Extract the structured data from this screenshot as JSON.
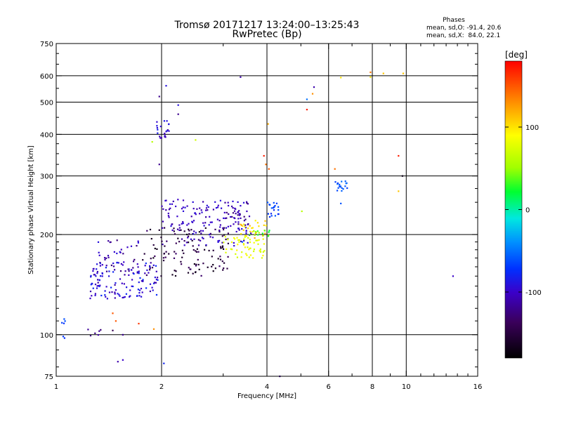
{
  "chart_data": {
    "type": "scatter",
    "title": "Tromsø 20171217 13:24:00–13:25:43",
    "subtitle": "RwPretec (Bp)",
    "xlabel": "Frequency [MHz]",
    "ylabel": "Stationary phase Virtual Height [km]",
    "x_scale": "log2",
    "y_scale": "log",
    "xlim": [
      1,
      16
    ],
    "ylim": [
      75,
      750
    ],
    "x_ticks": [
      1,
      2,
      4,
      6,
      8,
      10,
      16
    ],
    "x_gridlines": [
      2,
      4,
      6,
      8,
      10
    ],
    "y_ticks": [
      75,
      100,
      200,
      300,
      400,
      500,
      600,
      750
    ],
    "y_gridlines": [
      100,
      200,
      300,
      400,
      500,
      600
    ],
    "grid": true,
    "stats": {
      "heading": "Phases",
      "line_o": "mean, sd,O: -91.4, 20.6",
      "line_x": "mean, sd,X:  84.0, 22.1"
    },
    "colorbar": {
      "label": "[deg]",
      "range": [
        -180,
        180
      ],
      "ticks": [
        {
          "value": 100,
          "label": "100"
        },
        {
          "value": 0,
          "label": "0"
        },
        {
          "value": -100,
          "label": "-100"
        }
      ]
    },
    "clusters": [
      {
        "f_range": [
          1.02,
          1.06
        ],
        "h_range": [
          96,
          113
        ],
        "phase_range": [
          -80,
          -60
        ],
        "count": 6
      },
      {
        "f_range": [
          1.23,
          1.35
        ],
        "h_range": [
          99,
          104
        ],
        "phase_range": [
          -130,
          -110
        ],
        "count": 6
      },
      {
        "f_range": [
          1.25,
          1.95
        ],
        "h_range": [
          128,
          165
        ],
        "phase_range": [
          -115,
          -75
        ],
        "count": 130
      },
      {
        "f_range": [
          1.3,
          1.75
        ],
        "h_range": [
          150,
          195
        ],
        "phase_range": [
          -130,
          -90
        ],
        "count": 40
      },
      {
        "f_range": [
          1.75,
          3.1
        ],
        "h_range": [
          150,
          210
        ],
        "phase_range": [
          -170,
          -130
        ],
        "count": 120
      },
      {
        "f_range": [
          2.0,
          3.6
        ],
        "h_range": [
          185,
          255
        ],
        "phase_range": [
          -115,
          -90
        ],
        "count": 140
      },
      {
        "f_range": [
          3.0,
          3.55
        ],
        "h_range": [
          205,
          250
        ],
        "phase_range": [
          -130,
          -95
        ],
        "count": 30
      },
      {
        "f_range": [
          3.0,
          3.95
        ],
        "h_range": [
          170,
          198
        ],
        "phase_range": [
          70,
          95
        ],
        "count": 55
      },
      {
        "f_range": [
          3.35,
          4.0
        ],
        "h_range": [
          192,
          222
        ],
        "phase_range": [
          90,
          125
        ],
        "count": 25
      },
      {
        "f_range": [
          3.55,
          4.1
        ],
        "h_range": [
          196,
          206
        ],
        "phase_range": [
          20,
          60
        ],
        "count": 15
      },
      {
        "f_range": [
          4.0,
          4.4
        ],
        "h_range": [
          225,
          250
        ],
        "phase_range": [
          -80,
          -55
        ],
        "count": 20
      },
      {
        "f_range": [
          1.93,
          2.1
        ],
        "h_range": [
          390,
          440
        ],
        "phase_range": [
          -110,
          -80
        ],
        "count": 22
      },
      {
        "f_range": [
          6.25,
          6.8
        ],
        "h_range": [
          270,
          290
        ],
        "phase_range": [
          -70,
          -45
        ],
        "count": 18
      }
    ],
    "points": [
      {
        "f": 1.5,
        "h": 83,
        "phase": -110
      },
      {
        "f": 1.55,
        "h": 84,
        "phase": -100
      },
      {
        "f": 1.55,
        "h": 100,
        "phase": -120
      },
      {
        "f": 1.45,
        "h": 103,
        "phase": -140
      },
      {
        "f": 1.48,
        "h": 110,
        "phase": 150
      },
      {
        "f": 1.45,
        "h": 116,
        "phase": 150
      },
      {
        "f": 1.72,
        "h": 108,
        "phase": 160
      },
      {
        "f": 1.9,
        "h": 104,
        "phase": 130
      },
      {
        "f": 2.03,
        "h": 82,
        "phase": -80
      },
      {
        "f": 1.97,
        "h": 325,
        "phase": -120
      },
      {
        "f": 1.97,
        "h": 520,
        "phase": -120
      },
      {
        "f": 2.06,
        "h": 560,
        "phase": -90
      },
      {
        "f": 2.23,
        "h": 490,
        "phase": -90
      },
      {
        "f": 2.23,
        "h": 460,
        "phase": -120
      },
      {
        "f": 2.5,
        "h": 385,
        "phase": 70
      },
      {
        "f": 1.88,
        "h": 380,
        "phase": 60
      },
      {
        "f": 3.36,
        "h": 595,
        "phase": -110
      },
      {
        "f": 3.4,
        "h": 190,
        "phase": -60
      },
      {
        "f": 3.92,
        "h": 345,
        "phase": 170
      },
      {
        "f": 4.03,
        "h": 430,
        "phase": 120
      },
      {
        "f": 3.97,
        "h": 325,
        "phase": 140
      },
      {
        "f": 4.05,
        "h": 315,
        "phase": 150
      },
      {
        "f": 4.35,
        "h": 75,
        "phase": -120
      },
      {
        "f": 5.03,
        "h": 235,
        "phase": 60
      },
      {
        "f": 5.2,
        "h": 475,
        "phase": 170
      },
      {
        "f": 5.2,
        "h": 510,
        "phase": -50
      },
      {
        "f": 5.45,
        "h": 555,
        "phase": -110
      },
      {
        "f": 5.4,
        "h": 530,
        "phase": 130
      },
      {
        "f": 6.25,
        "h": 315,
        "phase": 140
      },
      {
        "f": 6.5,
        "h": 248,
        "phase": -60
      },
      {
        "f": 6.5,
        "h": 593,
        "phase": 100
      },
      {
        "f": 7.9,
        "h": 615,
        "phase": 140
      },
      {
        "f": 7.9,
        "h": 595,
        "phase": 100
      },
      {
        "f": 8.6,
        "h": 610,
        "phase": 110
      },
      {
        "f": 9.5,
        "h": 345,
        "phase": 170
      },
      {
        "f": 9.5,
        "h": 270,
        "phase": 110
      },
      {
        "f": 9.75,
        "h": 300,
        "phase": -170
      },
      {
        "f": 9.8,
        "h": 610,
        "phase": 110
      },
      {
        "f": 13.6,
        "h": 150,
        "phase": -100
      }
    ]
  }
}
